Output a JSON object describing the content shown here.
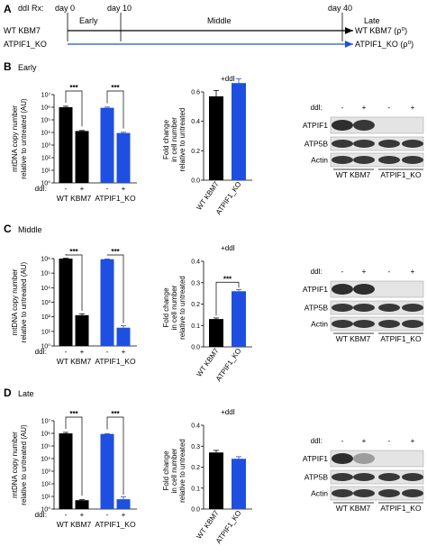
{
  "panel_a": {
    "label": "A",
    "ddi_rx": "ddI Rx:",
    "day_labels": [
      "day 0",
      "day 10",
      "day 40"
    ],
    "phases": [
      "Early",
      "Middle",
      "Late"
    ],
    "left_labels": [
      "WT KBM7",
      "ATPIF1_KO"
    ],
    "right_labels": [
      "WT KBM7 (ρ⁰)",
      "ATPIF1_KO (ρ⁰)"
    ],
    "colors": {
      "wt": "#000000",
      "ko": "#1f4fe0"
    }
  },
  "common": {
    "mtdna_ylabel_1": "mtDNA copy number",
    "mtdna_ylabel_2": "relative to untreated (AU)",
    "fold_ylabel_1": "Fold change",
    "fold_ylabel_2": "in cell number",
    "fold_ylabel_3": "relative to untreated",
    "ddi_label": "ddI:",
    "ddi_minus": "-",
    "ddi_plus": "+",
    "group_wt": "WT KBM7",
    "group_ko": "ATPIF1_KO",
    "plus_ddi": "+ddI",
    "stars": "***",
    "blot_rows": [
      "ATPIF1",
      "ATP5B",
      "Actin"
    ]
  },
  "chart_data": [
    {
      "panel": "B",
      "phase": "Early",
      "type": "bar",
      "scale": "log",
      "ylim": [
        1,
        10000000
      ],
      "yticks": [
        "10⁰",
        "10¹",
        "10²",
        "10³",
        "10⁴",
        "10⁵",
        "10⁶",
        "10⁷"
      ],
      "categories": [
        "WT KBM7 -",
        "WT KBM7 +",
        "ATPIF1_KO -",
        "ATPIF1_KO +"
      ],
      "values": [
        1000000,
        13000,
        900000,
        9000
      ],
      "errors": [
        1.2,
        1.1,
        1.15,
        1.15
      ],
      "colors": [
        "#000000",
        "#000000",
        "#1f4fe0",
        "#1f4fe0"
      ]
    },
    {
      "panel": "B",
      "phase": "Early",
      "type": "bar",
      "scale": "linear",
      "ylim": [
        0,
        0.6
      ],
      "yticks": [
        "0.0",
        "0.2",
        "0.4",
        "0.6"
      ],
      "categories": [
        "WT KBM7",
        "ATPIF1_KO"
      ],
      "values": [
        0.57,
        0.66
      ],
      "errors": [
        0.04,
        0.03
      ],
      "colors": [
        "#000000",
        "#1f4fe0"
      ]
    },
    {
      "panel": "C",
      "phase": "Middle",
      "type": "bar",
      "scale": "log",
      "ylim": [
        1,
        1000000
      ],
      "yticks": [
        "10⁰",
        "10¹",
        "10²",
        "10³",
        "10⁴",
        "10⁵",
        "10⁶"
      ],
      "categories": [
        "WT KBM7 -",
        "WT KBM7 +",
        "ATPIF1_KO -",
        "ATPIF1_KO +"
      ],
      "values": [
        1000000,
        130,
        900000,
        18
      ],
      "errors": [
        1.05,
        1.25,
        1.05,
        1.35
      ],
      "colors": [
        "#000000",
        "#000000",
        "#1f4fe0",
        "#1f4fe0"
      ]
    },
    {
      "panel": "C",
      "phase": "Middle",
      "type": "bar",
      "scale": "linear",
      "ylim": [
        0,
        0.4
      ],
      "yticks": [
        "0.0",
        "0.1",
        "0.2",
        "0.3",
        "0.4"
      ],
      "categories": [
        "WT KBM7",
        "ATPIF1_KO"
      ],
      "values": [
        0.13,
        0.26
      ],
      "errors": [
        0.005,
        0.008
      ],
      "colors": [
        "#000000",
        "#1f4fe0"
      ]
    },
    {
      "panel": "D",
      "phase": "Late",
      "type": "bar",
      "scale": "log",
      "ylim": [
        1,
        10000000
      ],
      "yticks": [
        "10⁰",
        "10¹",
        "10²",
        "10³",
        "10⁴",
        "10⁵",
        "10⁶",
        "10⁷"
      ],
      "categories": [
        "WT KBM7 -",
        "WT KBM7 +",
        "ATPIF1_KO -",
        "ATPIF1_KO +"
      ],
      "values": [
        1000000,
        5,
        900000,
        6
      ],
      "errors": [
        1.2,
        1.1,
        1.05,
        1.6
      ],
      "colors": [
        "#000000",
        "#000000",
        "#1f4fe0",
        "#1f4fe0"
      ]
    },
    {
      "panel": "D",
      "phase": "Late",
      "type": "bar",
      "scale": "linear",
      "ylim": [
        0,
        0.4
      ],
      "yticks": [
        "0.0",
        "0.1",
        "0.2",
        "0.3",
        "0.4"
      ],
      "categories": [
        "WT KBM7",
        "ATPIF1_KO"
      ],
      "values": [
        0.27,
        0.24
      ],
      "errors": [
        0.01,
        0.01
      ],
      "colors": [
        "#000000",
        "#1f4fe0"
      ]
    }
  ]
}
